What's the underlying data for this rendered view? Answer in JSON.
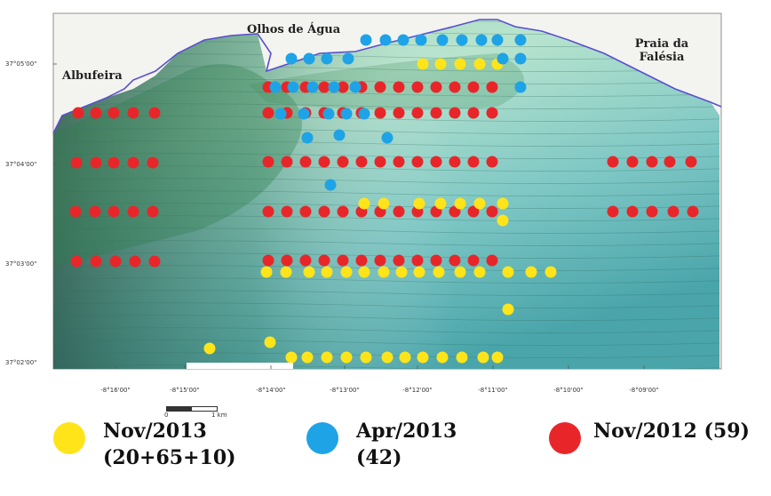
{
  "places": {
    "albufeira": "Albufeira",
    "olhos_de_agua": "Olhos de Água",
    "praia_da_falesia_line1": "Praia da",
    "praia_da_falesia_line2": "Falésia"
  },
  "lat_labels": [
    "37°05'00\"",
    "37°04'00\"",
    "37°03'00\"",
    "37°02'00\""
  ],
  "lon_labels": [
    "-8°16'00\"",
    "-8°15'00\"",
    "-8°14'00\"",
    "-8°13'00\"",
    "-8°12'00\"",
    "-8°11'00\"",
    "-8°10'00\"",
    "-8°09'00\""
  ],
  "scale": {
    "start": "0",
    "end": "1 km"
  },
  "legend": [
    {
      "line1": "Nov/2013",
      "line2": "(20+65+10)",
      "color": "#ffe41a"
    },
    {
      "line1": "Apr/2013",
      "line2": "(42)",
      "color": "#1ea3e6"
    },
    {
      "line1": "Nov/2012 (59)",
      "line2": "",
      "color": "#e8262a"
    }
  ],
  "colors": {
    "nov2013": "#ffe41a",
    "apr2013": "#1ea3e6",
    "nov2012": "#e8262a",
    "coastline": "#5a4fcf"
  }
}
